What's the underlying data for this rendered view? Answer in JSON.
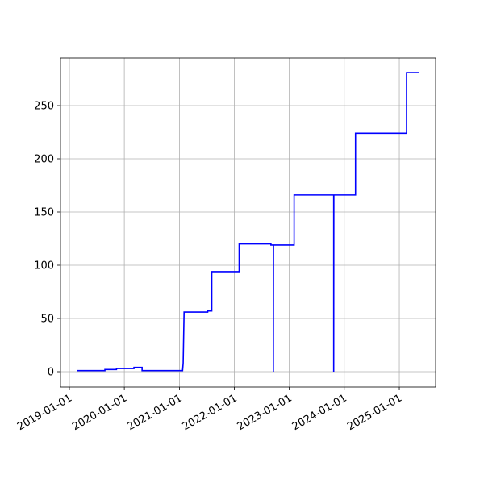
{
  "chart_data": {
    "type": "line",
    "x": [
      "2019-02-23",
      "2019-08-25",
      "2019-08-25",
      "2019-11-10",
      "2019-11-10",
      "2020-03-05",
      "2020-03-05",
      "2020-04-28",
      "2020-04-28",
      "2021-01-22",
      "2021-01-26",
      "2021-02-01",
      "2021-07-08",
      "2021-07-08",
      "2021-08-04",
      "2021-08-04",
      "2022-02-02",
      "2022-02-02",
      "2022-09-01",
      "2022-09-01",
      "2022-09-17",
      "2022-09-17",
      "2022-09-18",
      "2023-02-02",
      "2023-02-02",
      "2023-10-23",
      "2023-10-23",
      "2023-10-24",
      "2024-03-16",
      "2024-03-16",
      "2025-02-18",
      "2025-02-18",
      "2025-05-10"
    ],
    "series": [
      {
        "color": "#0000ff",
        "values": [
          1,
          1,
          2,
          2,
          3,
          3,
          4,
          4,
          1,
          1,
          8,
          56,
          56,
          57,
          57,
          94,
          94,
          120,
          120,
          119,
          119,
          0,
          119,
          119,
          166,
          166,
          0,
          166,
          166,
          224,
          224,
          281,
          281
        ]
      }
    ],
    "xlim": [
      "2018-11-03",
      "2025-08-30"
    ],
    "xticks": [
      "2019-01-01",
      "2020-01-01",
      "2021-01-01",
      "2022-01-01",
      "2023-01-01",
      "2024-01-01",
      "2025-01-01"
    ],
    "ylim": [
      -14.4,
      294.7
    ],
    "yticks": [
      0,
      50,
      100,
      150,
      200,
      250
    ],
    "grid": true
  }
}
